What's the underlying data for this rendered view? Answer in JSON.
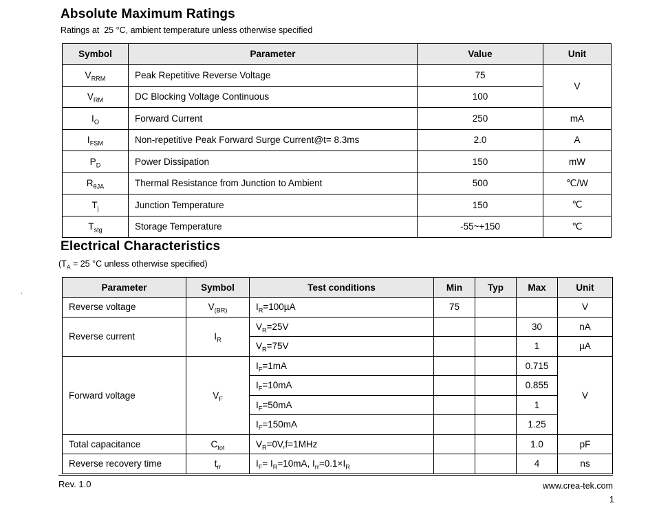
{
  "page": {
    "background": "#ffffff",
    "text_color": "#000000",
    "table_border_color": "#000000",
    "table_header_bg": "#e8e8e8"
  },
  "amr": {
    "title": "Absolute Maximum Ratings",
    "subtitle": "Ratings at  25 °C, ambient temperature unless otherwise specified",
    "headers": {
      "symbol": "Symbol",
      "parameter": "Parameter",
      "value": "Value",
      "unit": "Unit"
    },
    "rows": [
      {
        "symbol": "V~RRM~",
        "parameter": "Peak Repetitive Reverse Voltage",
        "value": "75",
        "unit": "V"
      },
      {
        "symbol": "V~RM~",
        "parameter": "DC Blocking Voltage Continuous",
        "value": "100"
      },
      {
        "symbol": "I~O~",
        "parameter": "Forward Current",
        "value": "250",
        "unit": "mA"
      },
      {
        "symbol": "I~FSM~",
        "parameter": "Non-repetitive Peak Forward Surge Current@t= 8.3ms",
        "value": "2.0",
        "unit": "A"
      },
      {
        "symbol": "P~D~",
        "parameter": "Power Dissipation",
        "value": "150",
        "unit": "mW"
      },
      {
        "symbol": "R~θJA~",
        "parameter": "Thermal Resistance from Junction to Ambient",
        "value": "500",
        "unit": "℃/W"
      },
      {
        "symbol": "T~j~",
        "parameter": "Junction Temperature",
        "value": "150",
        "unit": "℃"
      },
      {
        "symbol": "T~stg~",
        "parameter": "Storage Temperature",
        "value": "-55~+150",
        "unit": "℃"
      }
    ]
  },
  "ec": {
    "title": "Electrical Characteristics",
    "subtitle": "(T~A~ = 25 °C unless otherwise specified)",
    "headers": {
      "parameter": "Parameter",
      "symbol": "Symbol",
      "conditions": "Test conditions",
      "min": "Min",
      "typ": "Typ",
      "max": "Max",
      "unit": "Unit"
    },
    "rows": [
      {
        "parameter": "Reverse voltage",
        "symbol": "V~(BR)~",
        "conditions": "I~R~=100µA",
        "min": "75",
        "unit": "V"
      },
      {
        "parameter": "Reverse current",
        "symbol": "I~R~",
        "conditions": "V~R~=25V",
        "max": "30",
        "unit": "nA"
      },
      {
        "conditions": "V~R~=75V",
        "max": "1",
        "unit": "µA"
      },
      {
        "parameter": "Forward voltage",
        "symbol": "V~F~",
        "conditions": "I~F~=1mA",
        "max": "0.715",
        "unit": "V"
      },
      {
        "conditions": "I~F~=10mA",
        "max": "0.855"
      },
      {
        "conditions": "I~F~=50mA",
        "max": "1"
      },
      {
        "conditions": "I~F~=150mA",
        "max": "1.25"
      },
      {
        "parameter": "Total capacitance",
        "symbol": "C~tot~",
        "conditions": "V~R~=0V,f=1MHz",
        "max": "1.0",
        "unit": "pF"
      },
      {
        "parameter": "Reverse recovery time",
        "symbol": "t~rr~",
        "conditions": "I~F~= I~R~=10mA, I~rr~=0.1×I~R~",
        "max": "4",
        "unit": "ns"
      }
    ]
  },
  "footer": {
    "rev": "Rev. 1.0",
    "website": "www.crea-tek.com",
    "page_number": "1"
  },
  "artifacts": {
    "stray_dot": "."
  }
}
